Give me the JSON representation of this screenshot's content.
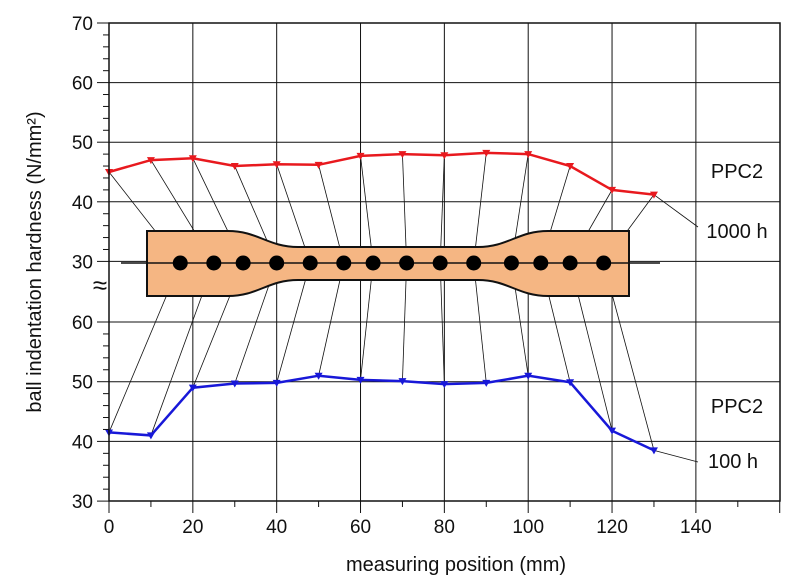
{
  "chart_data": {
    "type": "line",
    "xlabel": "measuring position (mm)",
    "ylabel": "ball indentation hardness (N/mm²)",
    "xlim": [
      0,
      160
    ],
    "x_ticks": [
      "0",
      "20",
      "40",
      "60",
      "80",
      "100",
      "120",
      "140"
    ],
    "y_ticks_upper": [
      "70",
      "60",
      "50",
      "40",
      "30"
    ],
    "y_ticks_lower": [
      "60",
      "50",
      "40",
      "30"
    ],
    "axis_break_symbol": "≈",
    "grid": true,
    "series": [
      {
        "name": "1000 h",
        "label": "PPC2",
        "color": "#e8191e",
        "ylim": [
          30,
          70
        ],
        "x": [
          0,
          10,
          20,
          30,
          40,
          50,
          60,
          70,
          80,
          90,
          100,
          110,
          120,
          130
        ],
        "values": [
          45.0,
          47.0,
          47.3,
          46.0,
          46.3,
          46.2,
          47.7,
          48.0,
          47.8,
          48.2,
          48.0,
          46.0,
          42.0,
          41.2
        ]
      },
      {
        "name": "100 h",
        "label": "PPC2",
        "color": "#1818d8",
        "ylim": [
          30,
          60
        ],
        "x": [
          0,
          10,
          20,
          30,
          40,
          50,
          60,
          70,
          80,
          90,
          100,
          110,
          120,
          130
        ],
        "values": [
          41.5,
          41.0,
          49.0,
          49.7,
          49.8,
          51.0,
          50.3,
          50.1,
          49.6,
          49.8,
          51.0,
          49.9,
          41.8,
          38.5
        ]
      }
    ],
    "specimen_points_x_mm": [
      17,
      25,
      32,
      40,
      48,
      56,
      63,
      71,
      79,
      87,
      96,
      103,
      110,
      118
    ]
  }
}
